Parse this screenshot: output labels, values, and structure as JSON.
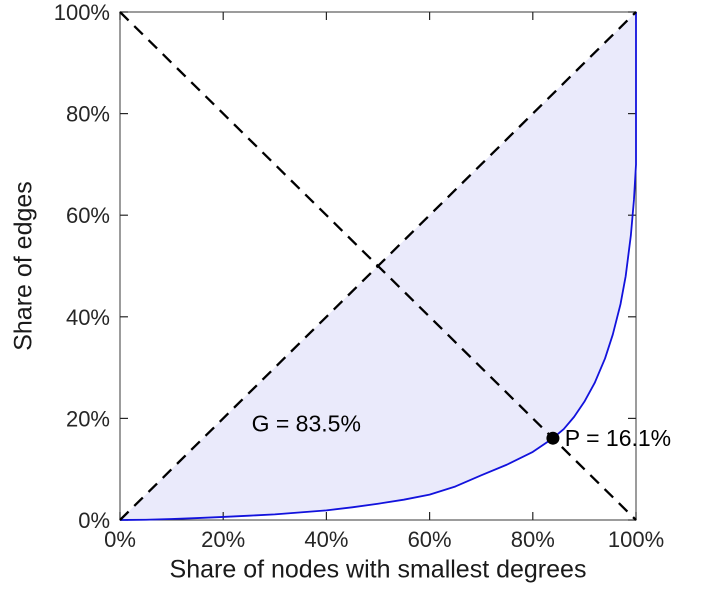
{
  "figure": {
    "background": "#ffffff"
  },
  "chart_data": {
    "type": "line",
    "title": "",
    "xlabel": "Share of nodes with smallest degrees",
    "ylabel": "Share of edges",
    "xlim": [
      0,
      100
    ],
    "ylim": [
      0,
      100
    ],
    "grid": false,
    "frame_color": "#3a3a3a",
    "tick_color": "#262626",
    "xticks": [
      0,
      20,
      40,
      60,
      80,
      100
    ],
    "xtick_labels": [
      "0%",
      "20%",
      "40%",
      "60%",
      "80%",
      "100%"
    ],
    "yticks": [
      0,
      20,
      40,
      60,
      80,
      100
    ],
    "ytick_labels": [
      "0%",
      "20%",
      "40%",
      "60%",
      "80%",
      "100%"
    ],
    "series": [
      {
        "name": "lorenz-curve",
        "style": "solid",
        "color": "#1212dd",
        "width": 1.8,
        "points": [
          [
            0,
            0
          ],
          [
            5,
            0.05
          ],
          [
            10,
            0.2
          ],
          [
            15,
            0.38
          ],
          [
            20,
            0.6
          ],
          [
            25,
            0.85
          ],
          [
            30,
            1.1
          ],
          [
            35,
            1.5
          ],
          [
            40,
            1.9
          ],
          [
            45,
            2.5
          ],
          [
            50,
            3.2
          ],
          [
            55,
            4.0
          ],
          [
            60,
            5.0
          ],
          [
            65,
            6.6
          ],
          [
            70,
            8.8
          ],
          [
            75,
            10.9
          ],
          [
            80,
            13.4
          ],
          [
            83.9,
            16.1
          ],
          [
            86,
            17.9
          ],
          [
            88,
            20.3
          ],
          [
            90,
            23.3
          ],
          [
            92,
            27
          ],
          [
            94,
            31.8
          ],
          [
            95.5,
            36.5
          ],
          [
            97,
            42.5
          ],
          [
            98,
            48
          ],
          [
            99,
            56
          ],
          [
            99.6,
            63
          ],
          [
            100,
            70
          ],
          [
            100,
            100
          ]
        ]
      },
      {
        "name": "equality-diagonal",
        "style": "dashed",
        "color": "#000000",
        "width": 2.3,
        "points": [
          [
            0,
            0
          ],
          [
            100,
            100
          ]
        ]
      },
      {
        "name": "anti-diagonal",
        "style": "dashed",
        "color": "#000000",
        "width": 2.3,
        "points": [
          [
            0,
            100
          ],
          [
            100,
            0
          ]
        ]
      }
    ],
    "fill_between": {
      "between": [
        "equality-diagonal",
        "lorenz-curve"
      ],
      "color": "#5a5ae1",
      "opacity": 0.13
    },
    "marker": {
      "x": 83.9,
      "y": 16.1,
      "radius": 6.5,
      "color": "#000000"
    },
    "annotations": [
      {
        "text": "G = 83.5%",
        "x": 25.5,
        "y": 19.0,
        "anchor": "start"
      },
      {
        "text": "P = 16.1%",
        "x": 86.2,
        "y": 16.1,
        "anchor": "start"
      }
    ]
  }
}
